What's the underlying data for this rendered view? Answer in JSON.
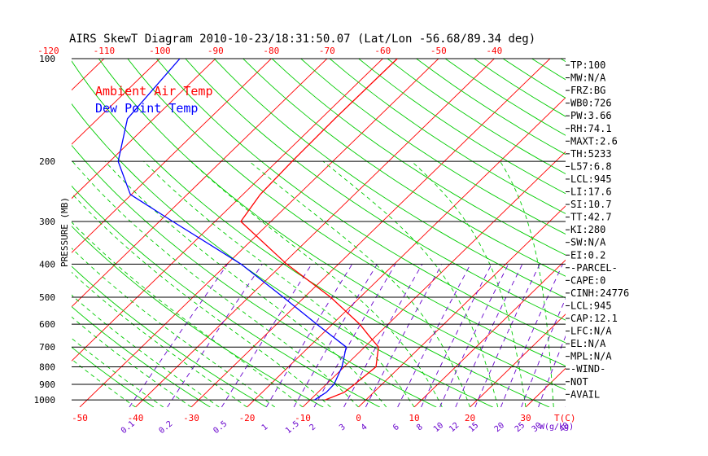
{
  "chart_data": {
    "type": "line",
    "title": "AIRS SkewT Diagram 2010-10-23/18:31:50.07 (Lat/Lon -56.68/89.34 deg)",
    "ylabel": "PRESSURE (MB)",
    "xlabel": "T(C)",
    "mixing_ratio_unit": "W(g/kg)",
    "y_scale": "log",
    "ylim": [
      1050,
      100
    ],
    "xlim_bottom": [
      -50,
      40
    ],
    "y_ticks": [
      100,
      200,
      300,
      400,
      500,
      600,
      700,
      800,
      900,
      1000
    ],
    "y_tick_labels": [
      "100",
      "200",
      "300",
      "400",
      "500",
      "600",
      "700",
      "800",
      "900",
      "1000"
    ],
    "top_temp_ticks": [
      -120,
      -110,
      -100,
      -90,
      -80,
      -70,
      -60,
      -50,
      -40
    ],
    "top_temp_labels": [
      "-120",
      "-110",
      "-100",
      "-90",
      "-80",
      "-70",
      "-60",
      "-50",
      "-40"
    ],
    "bottom_temp_ticks": [
      -50,
      -40,
      -30,
      -20,
      -10,
      0,
      10,
      20,
      30
    ],
    "bottom_temp_labels": [
      "-50",
      "-40",
      "-30",
      "-20",
      "-10",
      "0",
      "10",
      "20",
      "30"
    ],
    "mixing_ratio_values": [
      0.1,
      0.2,
      0.5,
      1,
      1.5,
      2,
      3,
      4,
      6,
      8,
      10,
      12,
      15,
      20,
      25,
      30,
      40
    ],
    "mixing_ratio_labels": [
      "0.1",
      "0.2",
      "0.5",
      "1",
      "1.5",
      "2",
      "3",
      "4",
      "6",
      "8",
      "10",
      "12",
      "15",
      "20",
      "25",
      "30",
      "40"
    ],
    "legend_placement": "top-left",
    "colors": {
      "temperature": "#ff0000",
      "dewpoint": "#0000ff",
      "isotherms": "#ff0000",
      "dry_adiabats": "#00cc00",
      "moist_adiabats": "#00cc00",
      "mixing_ratio": "#6600cc",
      "isobars": "#000000"
    },
    "series": [
      {
        "name": "Ambient Air Temp",
        "key": "temperature",
        "pressure": [
          1000,
          950,
          900,
          800,
          700,
          650,
          600,
          500,
          400,
          300,
          250,
          200,
          150,
          100
        ],
        "values": [
          -7.3,
          -5.3,
          -4.9,
          -4.3,
          -7.5,
          -11.2,
          -15.1,
          -25.3,
          -39.3,
          -55.4,
          -56.9,
          -57.3,
          -57.5,
          -57.4
        ]
      },
      {
        "name": "Dew Point Temp",
        "key": "dewpoint",
        "pressure": [
          1000,
          950,
          900,
          800,
          700,
          600,
          500,
          400,
          300,
          250,
          200,
          150,
          100
        ],
        "values": [
          -9.2,
          -8.5,
          -8.6,
          -10.4,
          -13.3,
          -22.8,
          -33.8,
          -47.5,
          -67.6,
          -80.2,
          -88.5,
          -94.7,
          -96.4
        ]
      }
    ]
  },
  "indices": [
    "TP:100",
    "MW:N/A",
    "FRZ:BG",
    "WB0:726",
    "PW:3.66",
    "RH:74.1",
    "MAXT:2.6",
    "TH:5233",
    "L57:6.8",
    "LCL:945",
    "LI:17.6",
    "SI:10.7",
    "TT:42.7",
    "KI:280",
    "SW:N/A",
    "EI:0.2",
    "-PARCEL-",
    "CAPE:0",
    "CINH:24776",
    "LCL:945",
    "CAP:12.1",
    "LFC:N/A",
    "EL:N/A",
    "MPL:N/A",
    "-WIND-",
    "NOT",
    "AVAIL"
  ]
}
